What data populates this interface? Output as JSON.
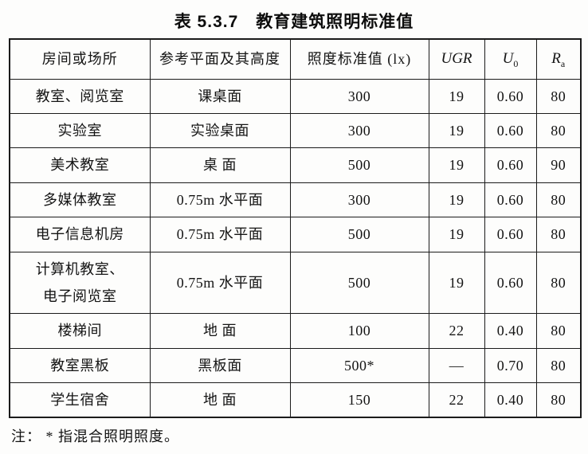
{
  "title": "表 5.3.7　教育建筑照明标准值",
  "note": "注： * 指混合照明照度。",
  "table": {
    "headers": {
      "room": "房间或场所",
      "plane": "参考平面及其高度",
      "lux": "照度标准值 (lx)",
      "ugr": "UGR",
      "u0_main": "U",
      "u0_sub": "0",
      "ra_main": "R",
      "ra_sub": "a"
    },
    "rows": [
      {
        "place": "教室、阅览室",
        "plane": "课桌面",
        "lux": "300",
        "ugr": "19",
        "u0": "0.60",
        "ra": "80"
      },
      {
        "place": "实验室",
        "plane": "实验桌面",
        "lux": "300",
        "ugr": "19",
        "u0": "0.60",
        "ra": "80"
      },
      {
        "place": "美术教室",
        "plane": "桌 面",
        "lux": "500",
        "ugr": "19",
        "u0": "0.60",
        "ra": "90"
      },
      {
        "place": "多媒体教室",
        "plane": "0.75m 水平面",
        "lux": "300",
        "ugr": "19",
        "u0": "0.60",
        "ra": "80"
      },
      {
        "place": "电子信息机房",
        "plane": "0.75m 水平面",
        "lux": "500",
        "ugr": "19",
        "u0": "0.60",
        "ra": "80"
      },
      {
        "place": "计算机教室、\n电子阅览室",
        "plane": "0.75m 水平面",
        "lux": "500",
        "ugr": "19",
        "u0": "0.60",
        "ra": "80"
      },
      {
        "place": "楼梯间",
        "plane": "地 面",
        "lux": "100",
        "ugr": "22",
        "u0": "0.40",
        "ra": "80"
      },
      {
        "place": "教室黑板",
        "plane": "黑板面",
        "lux": "500*",
        "ugr": "—",
        "u0": "0.70",
        "ra": "80"
      },
      {
        "place": "学生宿舍",
        "plane": "地 面",
        "lux": "150",
        "ugr": "22",
        "u0": "0.40",
        "ra": "80"
      }
    ]
  }
}
